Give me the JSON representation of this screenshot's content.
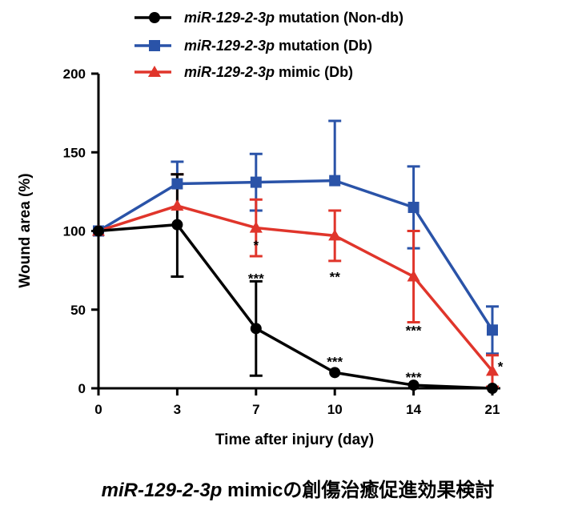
{
  "chart_data": {
    "type": "line",
    "title_gene": "miR-129-2-3p",
    "title_rest": " mimicの創傷治癒促進効果検討",
    "xlabel": "Time after injury (day)",
    "ylabel": "Wound area (%)",
    "categories": [
      "0",
      "3",
      "7",
      "10",
      "14",
      "21"
    ],
    "ylim": [
      0,
      200
    ],
    "yticks": [
      0,
      50,
      100,
      150,
      200
    ],
    "grid": false,
    "legend_position": "top",
    "series": [
      {
        "name_gene": "miR-129-2-3p",
        "name_rest": " mutation (Non-db)",
        "color": "#000000",
        "marker": "circle",
        "values": [
          100,
          104,
          38,
          10,
          2,
          0
        ],
        "error_up": [
          null,
          32,
          30,
          null,
          null,
          null
        ],
        "error_down": [
          null,
          33,
          30,
          null,
          null,
          null
        ]
      },
      {
        "name_gene": "miR-129-2-3p",
        "name_rest": " mutation (Db)",
        "color": "#2a53a8",
        "marker": "square",
        "values": [
          100,
          130,
          131,
          132,
          115,
          37
        ],
        "error_up": [
          null,
          14,
          18,
          38,
          26,
          15
        ],
        "error_down": [
          null,
          0,
          18,
          0,
          26,
          15
        ]
      },
      {
        "name_gene": "miR-129-2-3p",
        "name_rest": " mimic (Db)",
        "color": "#e0352b",
        "marker": "triangle",
        "values": [
          100,
          116,
          102,
          97,
          71,
          11
        ],
        "error_up": [
          null,
          20,
          18,
          16,
          29,
          10
        ],
        "error_down": [
          null,
          0,
          18,
          16,
          29,
          10
        ]
      }
    ],
    "significance": [
      {
        "category": "7",
        "value": 91,
        "text": "*"
      },
      {
        "category": "7",
        "value": 70,
        "text": "***"
      },
      {
        "category": "10",
        "value": 71,
        "text": "**"
      },
      {
        "category": "10",
        "value": 17,
        "text": "***"
      },
      {
        "category": "14",
        "value": 37,
        "text": "***"
      },
      {
        "category": "14",
        "value": 7,
        "text": "***"
      },
      {
        "category": "21",
        "value": 14,
        "text": "*"
      }
    ]
  }
}
